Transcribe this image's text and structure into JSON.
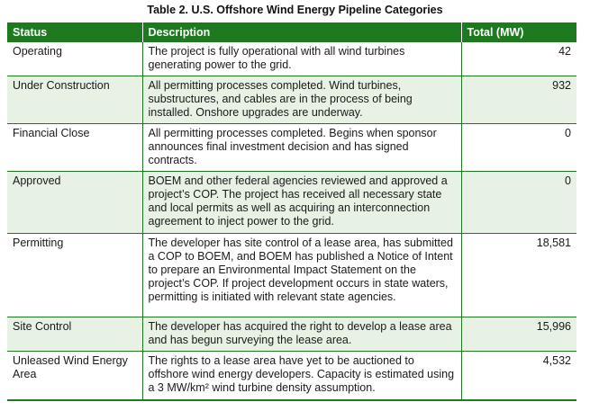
{
  "caption": "Table 2. U.S. Offshore Wind Energy Pipeline Categories",
  "colors": {
    "header_bg": "#1e7a1e",
    "header_text": "#ffffff",
    "alt_row": "#e7f1e4",
    "border": "#1e7a1e"
  },
  "table": {
    "headers": [
      "Status",
      "Description",
      "Total (MW)"
    ],
    "rows": [
      {
        "status": "Operating",
        "description": "The project is fully operational with all wind turbines generating power to the grid.",
        "total": "42"
      },
      {
        "status": "Under Construction",
        "description": "All permitting processes completed. Wind turbines, substructures, and cables are in the process of being installed. Onshore upgrades are underway.",
        "total": "932"
      },
      {
        "status": "Financial Close",
        "description": "All permitting processes completed. Begins when sponsor announces final investment decision and has signed contracts.",
        "total": "0"
      },
      {
        "status": "Approved",
        "description": "BOEM and other federal agencies reviewed and approved a project’s COP. The project has received all necessary state and local permits as well as acquiring an interconnection agreement to inject power to the grid.",
        "total": "0"
      },
      {
        "status": "Permitting",
        "description": "The developer has site control of a lease area, has submitted a COP to BOEM, and BOEM has published a Notice of Intent to prepare an Environmental Impact Statement on the project’s COP. If project development occurs in state waters, permitting is initiated with relevant state agencies.",
        "total": "18,581"
      },
      {
        "status": "Site Control",
        "description": "The developer has acquired the right to develop a lease area and has begun surveying the lease area.",
        "total": "15,996"
      },
      {
        "status": "Unleased Wind Energy Area",
        "description": "The rights to a lease area have yet to be auctioned to offshore wind energy developers. Capacity is estimated using a 3 MW/km² wind turbine density assumption.",
        "total": "4,532"
      }
    ]
  }
}
